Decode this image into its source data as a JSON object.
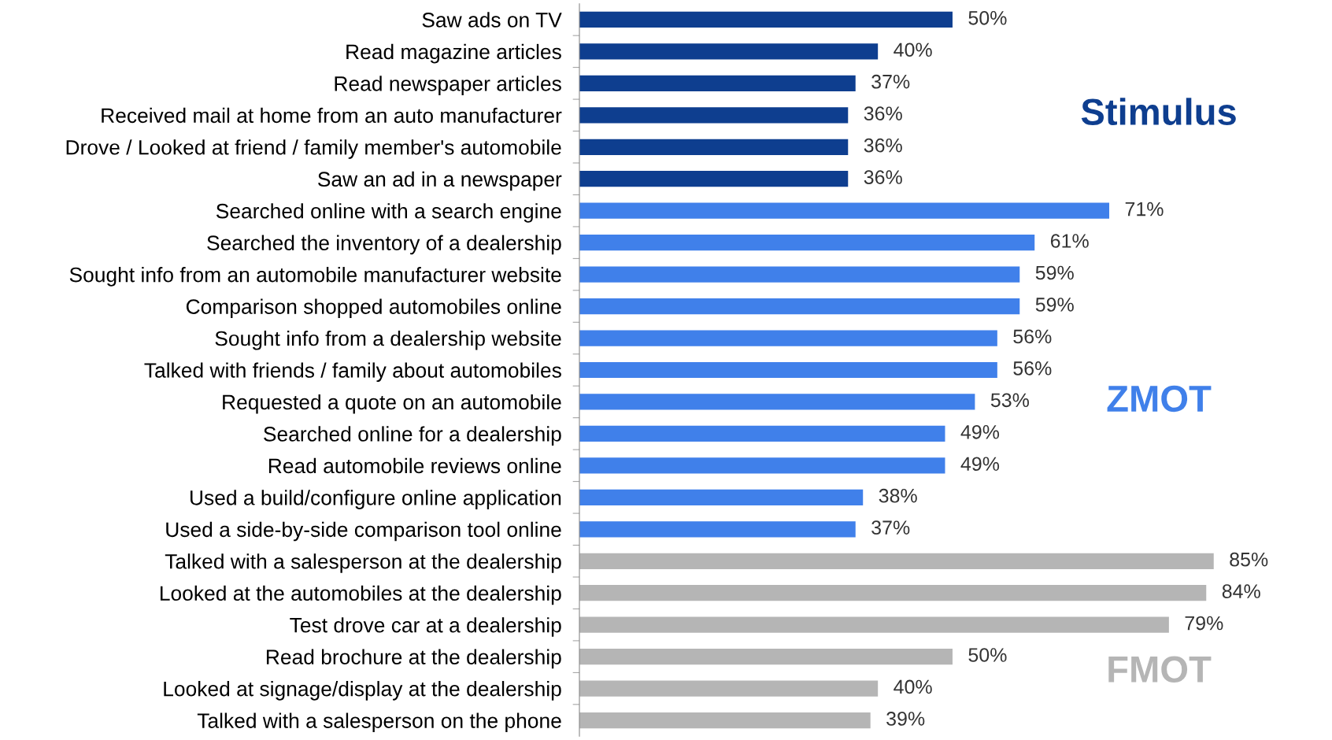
{
  "chart_data": {
    "type": "bar",
    "orientation": "horizontal",
    "categories": [
      "Saw ads on TV",
      "Read magazine articles",
      "Read newspaper articles",
      "Received mail at home from an auto manufacturer",
      "Drove / Looked at friend / family member's automobile",
      "Saw an ad in a newspaper",
      "Searched online with a search engine",
      "Searched the inventory of a dealership",
      "Sought info from an automobile manufacturer website",
      "Comparison shopped automobiles online",
      "Sought info from a dealership website",
      "Talked with friends / family about automobiles",
      "Requested a quote on an automobile",
      "Searched online for a dealership",
      "Read automobile reviews online",
      "Used a build/configure online application",
      "Used a side-by-side comparison tool online",
      "Talked with a salesperson at the dealership",
      "Looked at the automobiles at the dealership",
      "Test drove car at a dealership",
      "Read brochure at the dealership",
      "Looked at signage/display at the dealership",
      "Talked with a salesperson on the phone"
    ],
    "values": [
      50,
      40,
      37,
      36,
      36,
      36,
      71,
      61,
      59,
      59,
      56,
      56,
      53,
      49,
      49,
      38,
      37,
      85,
      84,
      79,
      50,
      40,
      39
    ],
    "colors": [
      "#0e3e8f",
      "#0e3e8f",
      "#0e3e8f",
      "#0e3e8f",
      "#0e3e8f",
      "#0e3e8f",
      "#4080ea",
      "#4080ea",
      "#4080ea",
      "#4080ea",
      "#4080ea",
      "#4080ea",
      "#4080ea",
      "#4080ea",
      "#4080ea",
      "#4080ea",
      "#4080ea",
      "#b5b5b5",
      "#b5b5b5",
      "#b5b5b5",
      "#b5b5b5",
      "#b5b5b5",
      "#b5b5b5"
    ],
    "value_labels": [
      "50%",
      "40%",
      "37%",
      "36%",
      "36%",
      "36%",
      "71%",
      "61%",
      "59%",
      "59%",
      "56%",
      "56%",
      "53%",
      "49%",
      "49%",
      "38%",
      "37%",
      "85%",
      "84%",
      "79%",
      "50%",
      "40%",
      "39%"
    ],
    "annotations": [
      "Stimulus",
      "ZMOT",
      "FMOT"
    ],
    "tick_labels": "y",
    "grid": false,
    "legend": false
  }
}
